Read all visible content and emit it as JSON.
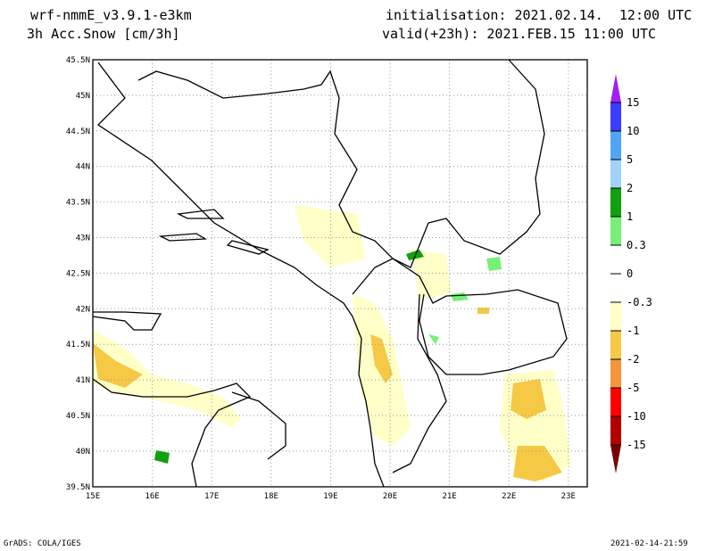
{
  "header": {
    "model": "wrf-nmmE_v3.9.1-e3km",
    "variable": "3h Acc.Snow [cm/3h]",
    "init": "initialisation: 2021.02.14.  12:00 UTC",
    "valid": "valid(+23h): 2021.FEB.15 11:00 UTC"
  },
  "map": {
    "lon_ticks": [
      "15E",
      "16E",
      "17E",
      "18E",
      "19E",
      "20E",
      "21E",
      "22E",
      "23E"
    ],
    "lat_ticks": [
      "45.5N",
      "45N",
      "44.5N",
      "44N",
      "43.5N",
      "43N",
      "42.5N",
      "42N",
      "41.5N",
      "41N",
      "40.5N",
      "40N",
      "39.5N"
    ]
  },
  "colorbar": {
    "labels": [
      "15",
      "10",
      "5",
      "2",
      "1",
      "0.3",
      "0",
      "-0.3",
      "-1",
      "-2",
      "-5",
      "-10",
      "-15"
    ],
    "colors": [
      "#a020f0",
      "#3c3cff",
      "#50a5f5",
      "#a0d2fa",
      "#10a010",
      "#78f078",
      "#ffffff",
      "#ffffff",
      "#ffffc8",
      "#f5c846",
      "#f5963c",
      "#ff0000",
      "#b40000",
      "#780000"
    ]
  },
  "footer": {
    "left": "GrADS: COLA/IGES",
    "right": "2021-02-14-21:59"
  }
}
